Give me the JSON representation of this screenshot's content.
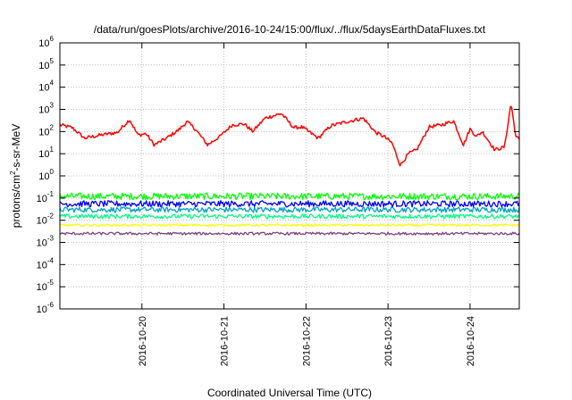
{
  "chart_data": {
    "type": "line",
    "title": "/data/run/goesPlots/archive/2016-10-24/15:00/flux/../flux/5daysEarthDataFluxes.txt",
    "xlabel": "Coordinated Universal Time (UTC)",
    "ylabel_parts": {
      "pre": "protons/cm",
      "sup": "2",
      "post": "-s-sr-MeV"
    },
    "x_ticks": [
      "2016-10-20",
      "2016-10-21",
      "2016-10-22",
      "2016-10-23",
      "2016-10-24"
    ],
    "x_tick_days": [
      1,
      2,
      3,
      4,
      5
    ],
    "xlim_days": [
      0,
      5.6
    ],
    "yscale": "log",
    "ylim_exp": [
      -6,
      6
    ],
    "y_ticks": [
      {
        "base": "10",
        "exp": "-6"
      },
      {
        "base": "10",
        "exp": "-5"
      },
      {
        "base": "10",
        "exp": "-4"
      },
      {
        "base": "10",
        "exp": "-3"
      },
      {
        "base": "10",
        "exp": "-2"
      },
      {
        "base": "10",
        "exp": "-1"
      },
      {
        "base": "10",
        "exp": "0"
      },
      {
        "base": "10",
        "exp": "1"
      },
      {
        "base": "10",
        "exp": "2"
      },
      {
        "base": "10",
        "exp": "3"
      },
      {
        "base": "10",
        "exp": "4"
      },
      {
        "base": "10",
        "exp": "5"
      },
      {
        "base": "10",
        "exp": "6"
      }
    ],
    "grid": true,
    "series": [
      {
        "color": "#ff0000",
        "noise_dex": 0.08,
        "x": [
          0,
          0.15,
          0.3,
          0.5,
          0.7,
          0.85,
          0.95,
          1.05,
          1.15,
          1.3,
          1.45,
          1.55,
          1.65,
          1.8,
          1.95,
          2.1,
          2.25,
          2.35,
          2.5,
          2.7,
          2.85,
          2.95,
          3.05,
          3.15,
          3.3,
          3.5,
          3.7,
          3.85,
          3.95,
          4.05,
          4.15,
          4.25,
          4.35,
          4.5,
          4.65,
          4.8,
          4.92,
          5.0,
          5.08,
          5.15,
          5.3,
          5.42,
          5.5,
          5.55,
          5.6
        ],
        "y": [
          200,
          150,
          50,
          70,
          90,
          350,
          70,
          80,
          25,
          50,
          120,
          280,
          130,
          25,
          60,
          200,
          220,
          100,
          400,
          650,
          150,
          160,
          90,
          50,
          180,
          280,
          400,
          90,
          60,
          30,
          3,
          10,
          15,
          160,
          200,
          300,
          25,
          130,
          60,
          100,
          15,
          20,
          2000,
          80,
          40
        ]
      },
      {
        "color": "#00ff00",
        "noise_dex": 0.15,
        "x": [
          0,
          5.6
        ],
        "y": [
          0.12,
          0.12
        ]
      },
      {
        "color": "#00a0c8",
        "noise_dex": 0.12,
        "x": [
          0,
          5.6
        ],
        "y": [
          0.03,
          0.03
        ]
      },
      {
        "color": "#0000ff",
        "noise_dex": 0.14,
        "x": [
          0,
          5.6
        ],
        "y": [
          0.055,
          0.055
        ]
      },
      {
        "color": "#00ff80",
        "noise_dex": 0.1,
        "x": [
          0,
          5.6
        ],
        "y": [
          0.015,
          0.015
        ]
      },
      {
        "color": "#ffff00",
        "noise_dex": 0.05,
        "x": [
          0,
          5.6
        ],
        "y": [
          0.006,
          0.006
        ]
      },
      {
        "color": "#804080",
        "noise_dex": 0.06,
        "x": [
          0,
          5.6
        ],
        "y": [
          0.0025,
          0.0025
        ]
      }
    ]
  }
}
